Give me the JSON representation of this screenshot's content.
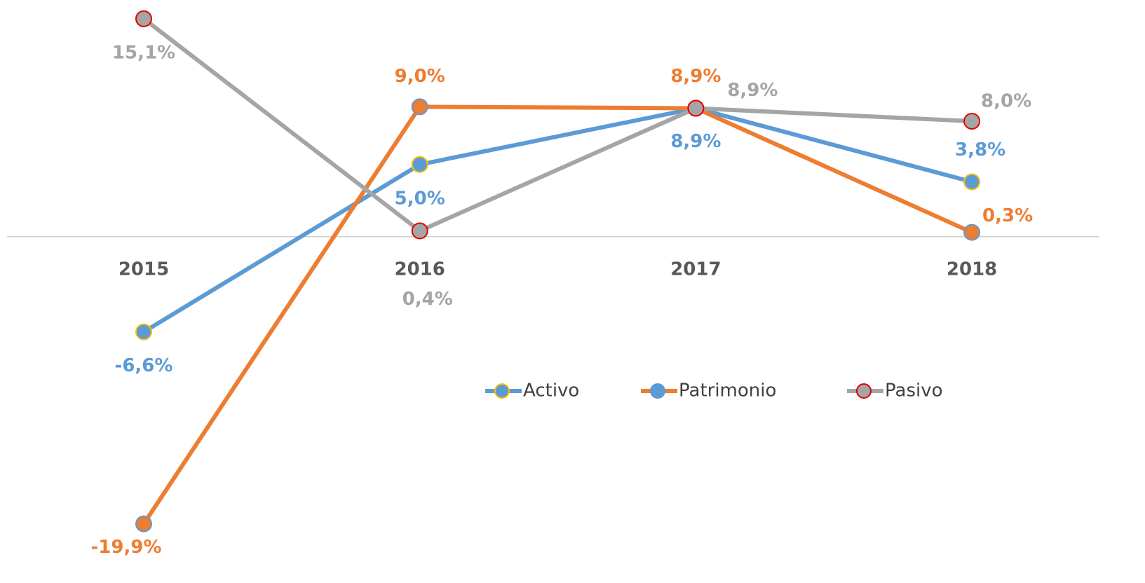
{
  "chart_data": {
    "type": "line",
    "categories": [
      "2015",
      "2016",
      "2017",
      "2018"
    ],
    "series": [
      {
        "name": "Activo",
        "color": "#5b9bd5",
        "marker_color": "#5b9bd5",
        "marker_edge": "#ffc000",
        "values": [
          -6.6,
          5.0,
          8.9,
          3.8
        ],
        "value_labels": [
          "-6,6%",
          "5,0%",
          "8,9%",
          "3,8%"
        ]
      },
      {
        "name": "Patrimonio",
        "color": "#ed7d31",
        "marker_color": "#ed7d31",
        "marker_edge": "#5b9bd5",
        "values": [
          -19.9,
          9.0,
          8.9,
          0.3
        ],
        "value_labels": [
          "-19,9%",
          "9,0%",
          "8,9%",
          "0,3%"
        ]
      },
      {
        "name": "Pasivo",
        "color": "#a5a5a5",
        "marker_color": "#a5a5a5",
        "marker_edge": "#e00000",
        "values": [
          15.1,
          0.4,
          8.9,
          8.0
        ],
        "value_labels": [
          "15,1%",
          "0,4%",
          "8,9%",
          "8,0%"
        ]
      }
    ],
    "ylim": [
      -24,
      16.4
    ],
    "grid": false,
    "legend": "right"
  }
}
